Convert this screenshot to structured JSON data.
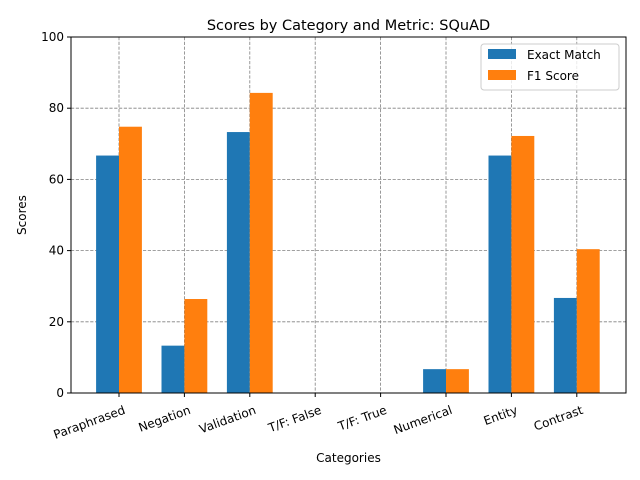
{
  "chart_data": {
    "type": "bar",
    "title": "Scores by Category and Metric: SQuAD",
    "xlabel": "Categories",
    "ylabel": "Scores",
    "ylim": [
      0,
      100
    ],
    "yticks": [
      0,
      20,
      40,
      60,
      80,
      100
    ],
    "categories": [
      "Paraphrased",
      "Negation",
      "Validation",
      "T/F: False",
      "T/F: True",
      "Numerical",
      "Entity",
      "Contrast"
    ],
    "series": [
      {
        "name": "Exact Match",
        "color": "#1f77b4",
        "values": [
          66.7,
          13.3,
          73.3,
          0,
          0,
          6.7,
          66.7,
          26.7
        ]
      },
      {
        "name": "F1 Score",
        "color": "#ff7f0e",
        "values": [
          74.8,
          26.4,
          84.3,
          0,
          0,
          6.7,
          72.2,
          40.4
        ]
      }
    ],
    "grid": true,
    "legend_position": "top-right"
  }
}
